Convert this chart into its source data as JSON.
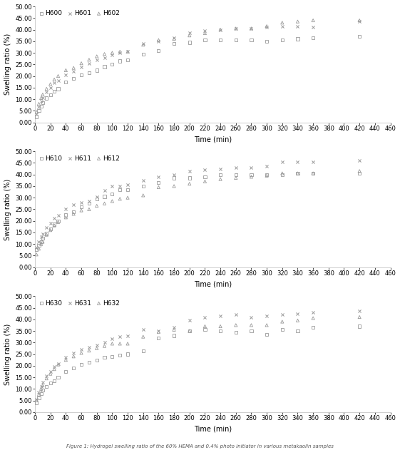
{
  "panels": [
    {
      "legend_labels": [
        "H600",
        "H601",
        "H602"
      ],
      "series": {
        "H600": {
          "x": [
            2,
            5,
            8,
            10,
            15,
            20,
            25,
            30,
            40,
            50,
            60,
            70,
            80,
            90,
            100,
            110,
            120,
            140,
            160,
            180,
            200,
            220,
            240,
            260,
            280,
            300,
            320,
            340,
            360,
            420
          ],
          "y": [
            2.5,
            5.0,
            7.0,
            8.5,
            10.5,
            12.0,
            13.5,
            14.5,
            17.5,
            19.0,
            20.5,
            21.5,
            22.5,
            24.0,
            25.0,
            26.5,
            27.0,
            29.5,
            31.0,
            34.0,
            34.5,
            35.5,
            35.5,
            35.5,
            35.5,
            35.0,
            35.5,
            36.0,
            36.5,
            37.0
          ]
        },
        "H601": {
          "x": [
            2,
            5,
            8,
            10,
            15,
            20,
            25,
            30,
            40,
            50,
            60,
            70,
            80,
            90,
            100,
            110,
            120,
            140,
            160,
            180,
            200,
            220,
            240,
            260,
            280,
            300,
            320,
            340,
            360,
            420
          ],
          "y": [
            3.5,
            6.5,
            9.0,
            10.5,
            13.0,
            15.0,
            17.0,
            18.0,
            20.5,
            22.0,
            24.0,
            25.5,
            27.0,
            28.0,
            29.0,
            30.0,
            30.5,
            34.0,
            35.0,
            36.5,
            38.5,
            39.5,
            40.0,
            40.5,
            40.5,
            41.0,
            41.5,
            41.5,
            41.0,
            43.5
          ]
        },
        "H602": {
          "x": [
            2,
            5,
            8,
            10,
            15,
            20,
            25,
            30,
            40,
            50,
            60,
            70,
            80,
            90,
            100,
            110,
            120,
            140,
            160,
            180,
            200,
            220,
            240,
            260,
            280,
            300,
            320,
            340,
            360,
            420
          ],
          "y": [
            4.5,
            8.0,
            10.5,
            12.0,
            14.5,
            16.5,
            18.5,
            20.0,
            22.5,
            23.5,
            25.5,
            27.0,
            28.5,
            29.5,
            30.0,
            30.5,
            30.5,
            33.5,
            35.5,
            36.0,
            37.5,
            38.5,
            40.0,
            40.5,
            40.5,
            41.5,
            43.0,
            43.5,
            44.0,
            44.0
          ]
        }
      },
      "markers": [
        "s",
        "x",
        "^"
      ]
    },
    {
      "legend_labels": [
        "H610",
        "H611",
        "H612"
      ],
      "series": {
        "H610": {
          "x": [
            2,
            5,
            8,
            10,
            15,
            20,
            25,
            30,
            40,
            50,
            60,
            70,
            80,
            90,
            100,
            110,
            120,
            140,
            160,
            180,
            200,
            220,
            240,
            260,
            280,
            300,
            320,
            340,
            360,
            420
          ],
          "y": [
            7.5,
            9.5,
            11.0,
            12.5,
            14.5,
            16.5,
            18.5,
            20.0,
            22.5,
            24.0,
            26.0,
            27.5,
            29.5,
            30.5,
            31.5,
            33.5,
            33.5,
            35.0,
            36.5,
            38.5,
            38.5,
            39.0,
            40.0,
            40.0,
            40.0,
            40.0,
            40.0,
            40.5,
            40.5,
            40.5
          ]
        },
        "H611": {
          "x": [
            2,
            5,
            8,
            10,
            15,
            20,
            25,
            30,
            40,
            50,
            60,
            70,
            80,
            90,
            100,
            110,
            120,
            140,
            160,
            180,
            200,
            220,
            240,
            260,
            280,
            300,
            320,
            340,
            360,
            420
          ],
          "y": [
            8.5,
            11.0,
            13.0,
            14.5,
            17.0,
            19.0,
            21.0,
            22.5,
            25.0,
            27.0,
            28.0,
            28.5,
            30.5,
            33.0,
            35.0,
            35.0,
            35.5,
            37.5,
            39.0,
            40.0,
            41.5,
            42.0,
            42.5,
            43.0,
            43.0,
            43.5,
            45.5,
            45.5,
            45.5,
            46.0
          ]
        },
        "H612": {
          "x": [
            2,
            5,
            8,
            10,
            15,
            20,
            25,
            30,
            40,
            50,
            60,
            70,
            80,
            90,
            100,
            110,
            120,
            140,
            160,
            180,
            200,
            220,
            240,
            260,
            280,
            300,
            320,
            340,
            360,
            420
          ],
          "y": [
            5.5,
            8.0,
            10.0,
            11.0,
            14.0,
            16.0,
            18.0,
            19.5,
            21.5,
            23.0,
            24.5,
            25.0,
            26.5,
            27.5,
            28.5,
            29.5,
            30.0,
            31.0,
            34.5,
            35.0,
            36.0,
            37.0,
            38.0,
            38.5,
            39.0,
            39.5,
            40.5,
            40.5,
            40.5,
            41.5
          ]
        }
      },
      "markers": [
        "s",
        "x",
        "^"
      ]
    },
    {
      "legend_labels": [
        "H630",
        "H631",
        "H632"
      ],
      "series": {
        "H630": {
          "x": [
            2,
            5,
            8,
            10,
            15,
            20,
            25,
            30,
            40,
            50,
            60,
            70,
            80,
            90,
            100,
            110,
            120,
            140,
            160,
            180,
            200,
            220,
            240,
            260,
            280,
            300,
            320,
            340,
            360,
            420
          ],
          "y": [
            4.0,
            6.0,
            8.0,
            9.5,
            11.0,
            12.5,
            13.5,
            15.0,
            17.5,
            19.0,
            20.5,
            21.5,
            22.5,
            23.5,
            24.0,
            24.5,
            25.0,
            26.5,
            32.0,
            33.0,
            35.0,
            35.5,
            35.0,
            34.5,
            35.0,
            33.5,
            35.5,
            35.0,
            36.5,
            37.0
          ]
        },
        "H631": {
          "x": [
            2,
            5,
            8,
            10,
            15,
            20,
            25,
            30,
            40,
            50,
            60,
            70,
            80,
            90,
            100,
            110,
            120,
            140,
            160,
            180,
            200,
            220,
            240,
            260,
            280,
            300,
            320,
            340,
            360,
            420
          ],
          "y": [
            5.5,
            8.5,
            11.0,
            13.0,
            15.5,
            17.5,
            19.5,
            21.0,
            23.5,
            25.5,
            27.0,
            28.0,
            29.0,
            30.0,
            31.5,
            32.5,
            33.0,
            35.5,
            35.0,
            36.5,
            39.5,
            41.0,
            41.5,
            42.0,
            41.0,
            41.5,
            42.0,
            42.5,
            43.0,
            43.5
          ]
        },
        "H632": {
          "x": [
            2,
            5,
            8,
            10,
            15,
            20,
            25,
            30,
            40,
            50,
            60,
            70,
            80,
            90,
            100,
            110,
            120,
            140,
            160,
            180,
            200,
            220,
            240,
            260,
            280,
            300,
            320,
            340,
            360,
            420
          ],
          "y": [
            5.0,
            7.5,
            10.0,
            11.5,
            14.5,
            16.5,
            18.5,
            20.5,
            22.5,
            24.0,
            25.5,
            26.5,
            27.5,
            28.5,
            29.5,
            29.5,
            29.5,
            32.5,
            34.5,
            35.5,
            35.0,
            37.0,
            37.0,
            37.5,
            37.5,
            37.5,
            39.0,
            39.5,
            40.5,
            41.0
          ]
        }
      },
      "markers": [
        "s",
        "x",
        "^"
      ]
    }
  ],
  "ylim": [
    0,
    50
  ],
  "yticks": [
    0.0,
    5.0,
    10.0,
    15.0,
    20.0,
    25.0,
    30.0,
    35.0,
    40.0,
    45.0,
    50.0
  ],
  "xlim": [
    0,
    460
  ],
  "xticks": [
    0,
    20,
    40,
    60,
    80,
    100,
    120,
    140,
    160,
    180,
    200,
    220,
    240,
    260,
    280,
    300,
    320,
    340,
    360,
    380,
    400,
    420,
    440,
    460
  ],
  "xlabel": "Time (min)",
  "ylabel": "Swelling ratio (%)",
  "marker_color": "#999999",
  "marker_size": 3.0,
  "font_size": 6.5,
  "legend_font_size": 6.5,
  "caption": "Figure 1: Hydrogel swelling ratio of the 60% HEMA and 0.4% photo initiator in various metakaolin samples"
}
